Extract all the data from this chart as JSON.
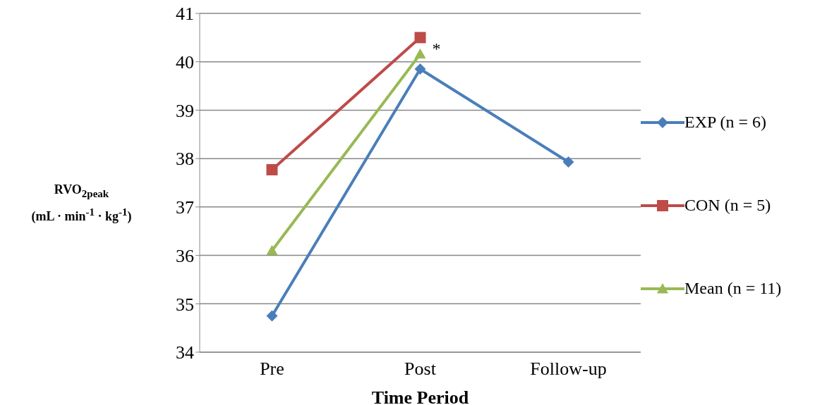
{
  "chart_data": {
    "type": "line",
    "xlabel": "Time Period",
    "ylabel": "RVO$_{2peak}$\n(mL · min$^{-1}$ · kg$^{-1}$)",
    "categories": [
      "Pre",
      "Post",
      "Follow-up"
    ],
    "series": [
      {
        "name": "EXP (n = 6)",
        "color": "#4a7ebb",
        "marker": "diamond",
        "values": [
          34.75,
          39.85,
          37.93
        ]
      },
      {
        "name": "CON (n = 5)",
        "color": "#be4b48",
        "marker": "square",
        "values": [
          37.77,
          40.5,
          null
        ]
      },
      {
        "name": "Mean (n = 11)",
        "color": "#98b954",
        "marker": "triangle",
        "values": [
          36.1,
          40.16,
          null
        ]
      }
    ],
    "ylim": [
      34,
      41
    ],
    "yticks": [
      34,
      35,
      36,
      37,
      38,
      39,
      40,
      41
    ],
    "grid": "y",
    "legend": "right",
    "line_style": "solid",
    "annotations": [
      {
        "text": "*",
        "x": "Post",
        "y": 40.16
      }
    ]
  }
}
